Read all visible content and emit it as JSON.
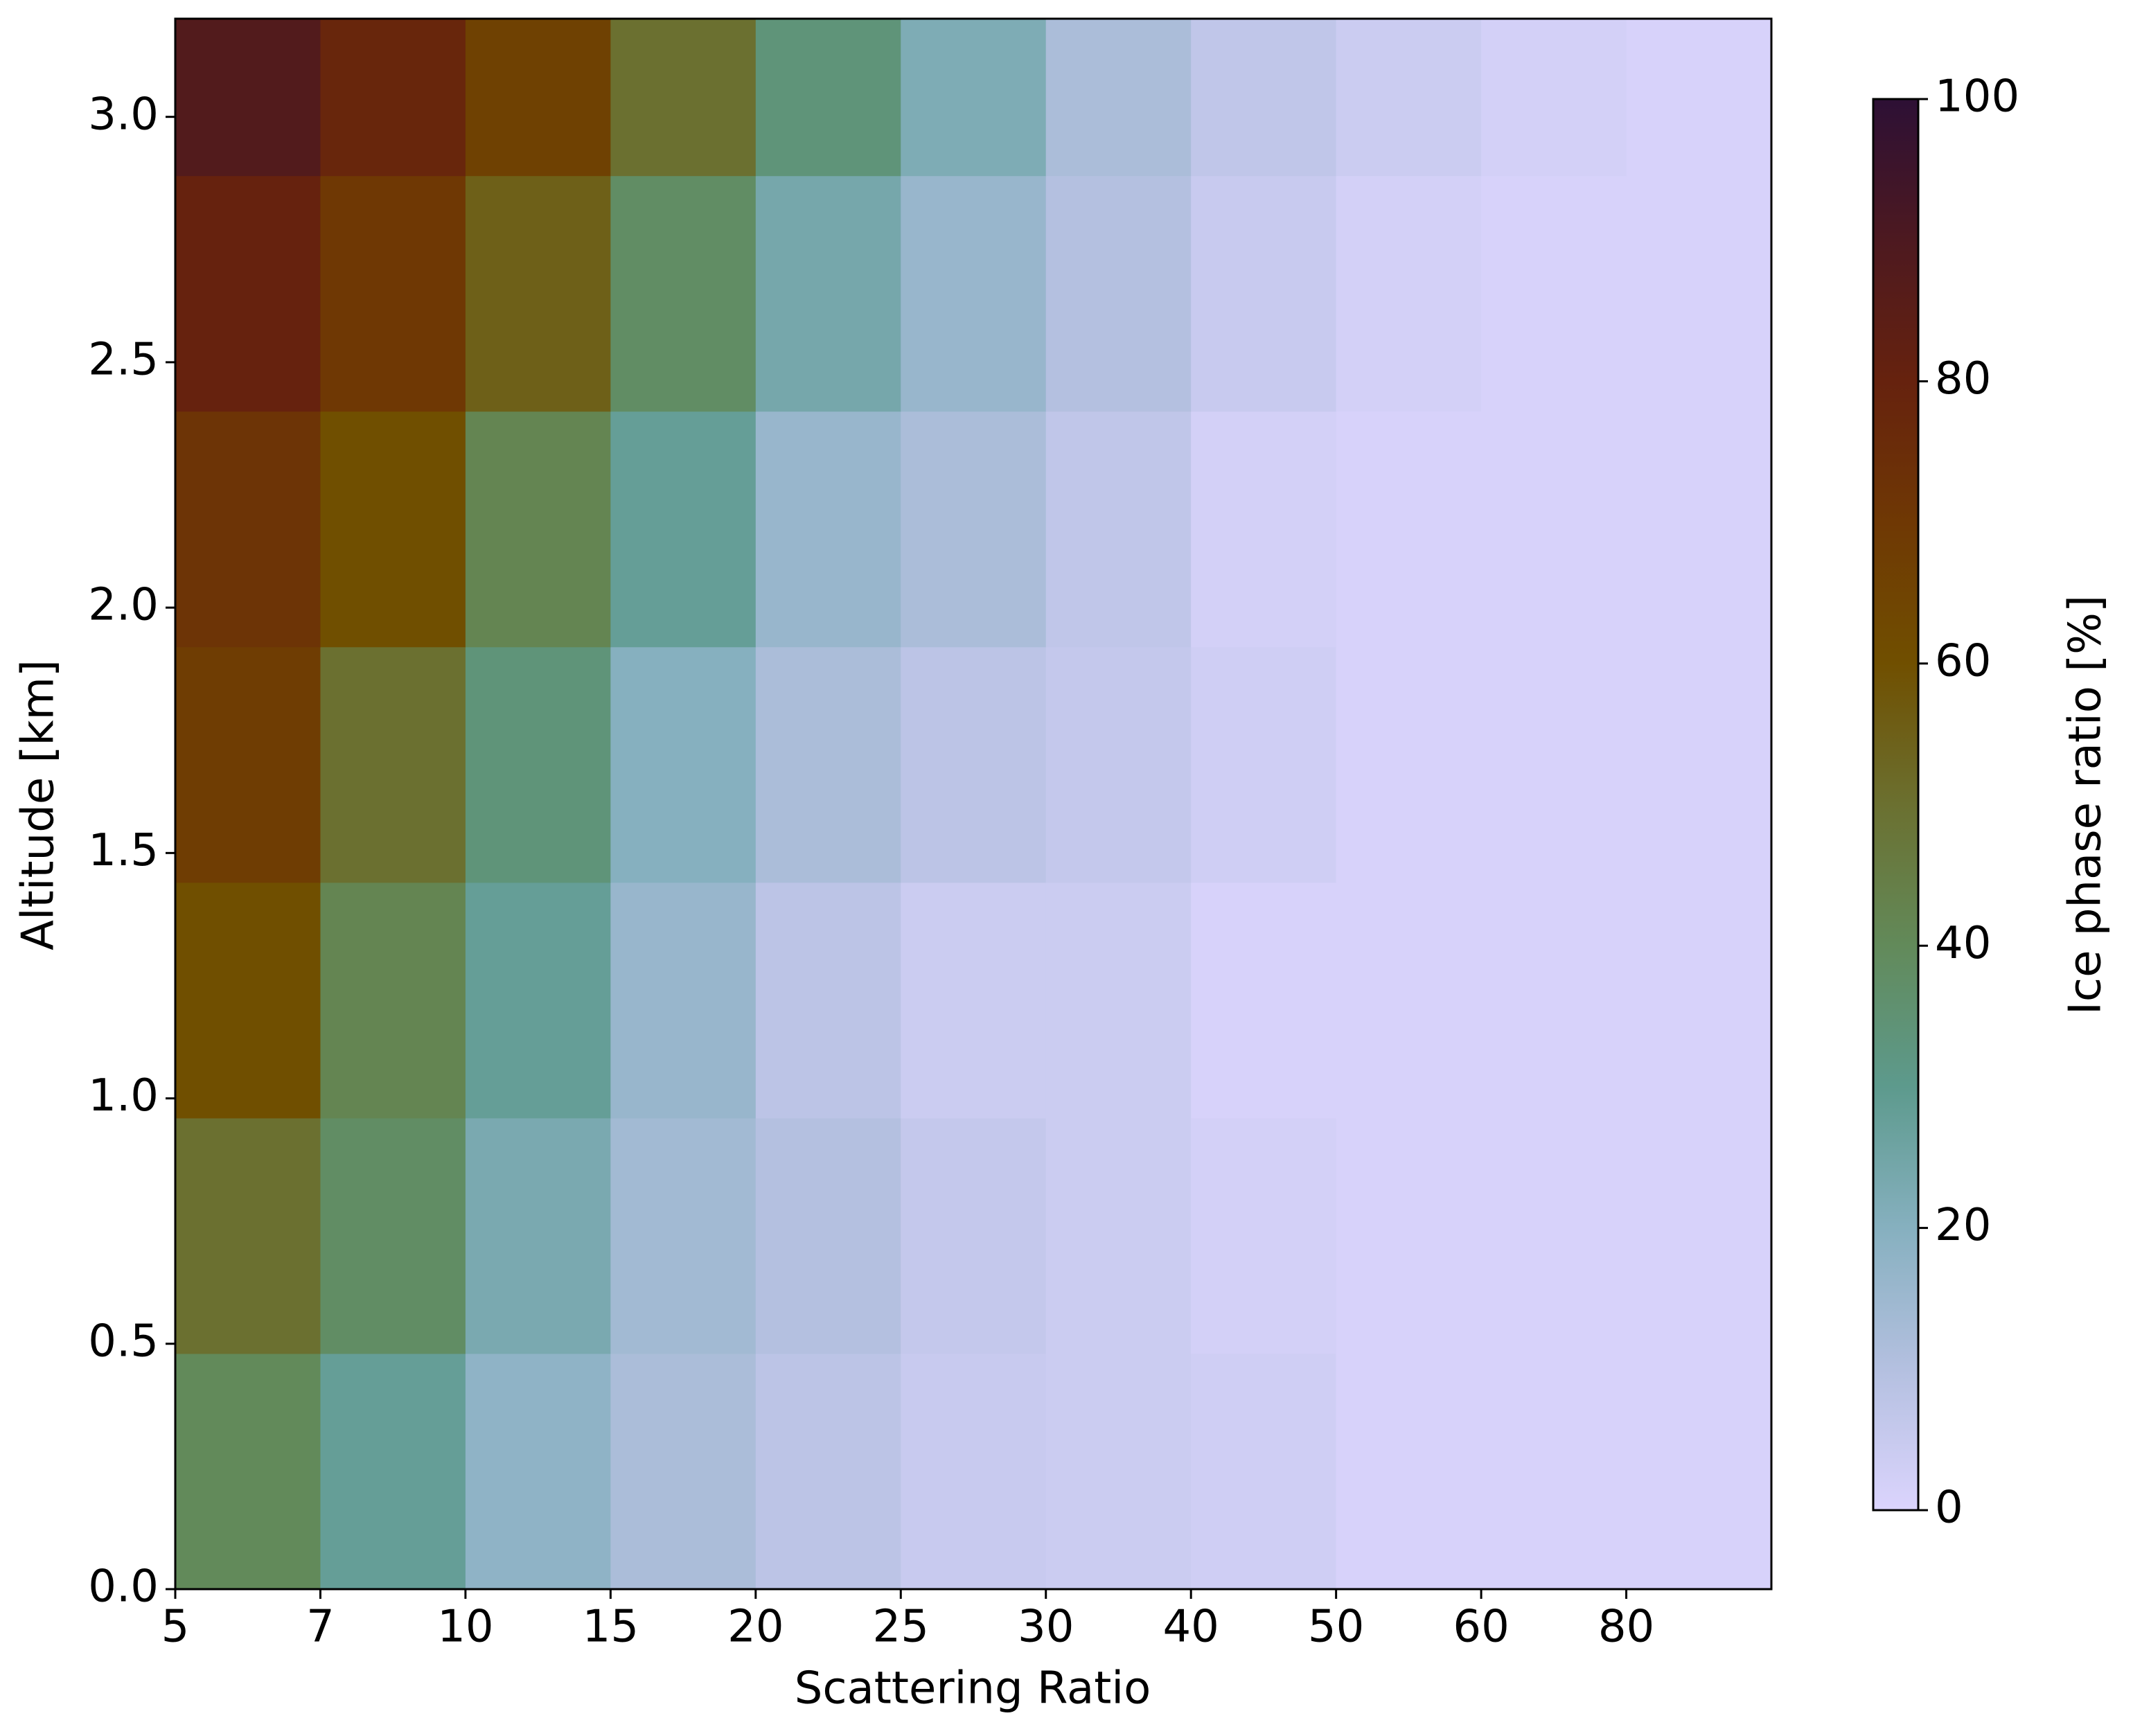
{
  "chart_data": {
    "type": "heatmap",
    "xlabel": "Scattering Ratio",
    "ylabel": "Altitude [km]",
    "colorbar_label": "Ice phase ratio [%]",
    "xlim": [
      0,
      11
    ],
    "xticks": [
      {
        "value": 0,
        "label": "5"
      },
      {
        "value": 1,
        "label": "7"
      },
      {
        "value": 2,
        "label": "10"
      },
      {
        "value": 3,
        "label": "15"
      },
      {
        "value": 4,
        "label": "20"
      },
      {
        "value": 5,
        "label": "25"
      },
      {
        "value": 6,
        "label": "30"
      },
      {
        "value": 7,
        "label": "40"
      },
      {
        "value": 8,
        "label": "50"
      },
      {
        "value": 9,
        "label": "60"
      },
      {
        "value": 10,
        "label": "80"
      }
    ],
    "ylim": [
      0,
      3.2
    ],
    "yticks": [
      {
        "value": 0,
        "label": "0.0"
      },
      0.5,
      {
        "value": 1,
        "label": "1.0"
      },
      1.5,
      {
        "value": 2,
        "label": "2.0"
      },
      2.5,
      {
        "value": 3,
        "label": "3.0"
      }
    ],
    "y_bins": [
      0,
      0.48,
      0.96,
      1.44,
      1.92,
      2.4,
      2.88,
      3.36
    ],
    "values": [
      [
        40,
        28,
        18,
        12,
        8,
        5,
        4,
        3,
        1,
        1,
        1
      ],
      [
        50,
        38,
        23,
        14,
        10,
        6,
        4,
        2,
        1,
        1,
        1
      ],
      [
        60,
        42,
        28,
        16,
        8,
        4,
        4,
        1,
        1,
        1,
        1
      ],
      [
        68,
        50,
        34,
        20,
        12,
        8,
        6,
        3,
        1,
        1,
        1
      ],
      [
        72,
        60,
        42,
        28,
        16,
        12,
        7,
        2,
        1,
        1,
        1
      ],
      [
        80,
        70,
        55,
        38,
        24,
        16,
        10,
        5,
        2,
        1,
        1
      ],
      [
        88,
        78,
        66,
        50,
        34,
        22,
        12,
        7,
        4,
        2,
        1
      ]
    ],
    "clim": [
      0,
      100
    ],
    "cticks": [
      0,
      20,
      40,
      60,
      80,
      100
    ],
    "colormap": [
      "#dbd4fd",
      "#b4c0e0",
      "#86b0bf",
      "#5d9a8d",
      "#628a5a",
      "#6b7030",
      "#704f00",
      "#6f3804",
      "#66220e",
      "#4d1920",
      "#2d1035"
    ]
  }
}
